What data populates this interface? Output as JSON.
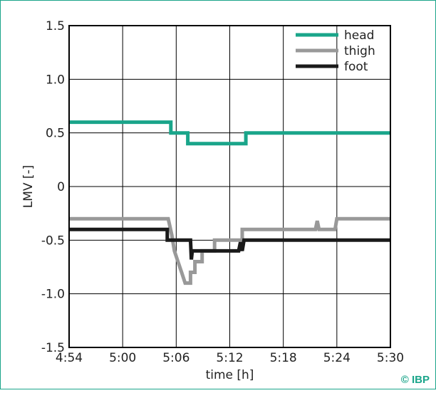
{
  "chart_data": {
    "type": "line",
    "xlabel": "time [h]",
    "ylabel": "LMV [-]",
    "xlim": [
      294,
      330
    ],
    "ylim": [
      -1.5,
      1.5
    ],
    "xticks": [
      294,
      300,
      306,
      312,
      318,
      324,
      330
    ],
    "xtick_labels": [
      "4:54",
      "5:00",
      "5:06",
      "5:12",
      "5:18",
      "5:24",
      "5:30"
    ],
    "yticks": [
      1.5,
      1.0,
      0.5,
      0,
      -0.5,
      -1.0,
      -1.5
    ],
    "ytick_labels": [
      "1.5",
      "1.0",
      "0.5",
      "0",
      "-0.5",
      "-1.0",
      "-1.5"
    ],
    "grid": true,
    "legend_position": "top-right",
    "series": [
      {
        "name": "head",
        "color": "#1aa58a",
        "points": [
          [
            294,
            0.6
          ],
          [
            305.4,
            0.6
          ],
          [
            305.4,
            0.5
          ],
          [
            307.3,
            0.5
          ],
          [
            307.3,
            0.4
          ],
          [
            313.8,
            0.4
          ],
          [
            313.8,
            0.5
          ],
          [
            330,
            0.5
          ]
        ]
      },
      {
        "name": "thigh",
        "color": "#999999",
        "points": [
          [
            294,
            -0.3
          ],
          [
            305.1,
            -0.3
          ],
          [
            305.5,
            -0.45
          ],
          [
            305.8,
            -0.6
          ],
          [
            306.2,
            -0.7
          ],
          [
            306.6,
            -0.8
          ],
          [
            307.0,
            -0.9
          ],
          [
            307.6,
            -0.9
          ],
          [
            307.6,
            -0.8
          ],
          [
            308.1,
            -0.8
          ],
          [
            308.1,
            -0.7
          ],
          [
            308.9,
            -0.7
          ],
          [
            308.9,
            -0.6
          ],
          [
            310.3,
            -0.6
          ],
          [
            310.3,
            -0.5
          ],
          [
            313.4,
            -0.5
          ],
          [
            313.4,
            -0.4
          ],
          [
            321.6,
            -0.4
          ],
          [
            321.8,
            -0.32
          ],
          [
            322,
            -0.4
          ],
          [
            323.8,
            -0.4
          ],
          [
            324,
            -0.3
          ],
          [
            330,
            -0.3
          ]
        ]
      },
      {
        "name": "foot",
        "color": "#1a1a1a",
        "points": [
          [
            294,
            -0.4
          ],
          [
            305.0,
            -0.4
          ],
          [
            305.0,
            -0.5
          ],
          [
            307.6,
            -0.5
          ],
          [
            307.7,
            -0.68
          ],
          [
            307.8,
            -0.6
          ],
          [
            313.0,
            -0.6
          ],
          [
            313.2,
            -0.52
          ],
          [
            313.4,
            -0.6
          ],
          [
            313.6,
            -0.5
          ],
          [
            330,
            -0.5
          ]
        ]
      }
    ]
  },
  "copyright": "© IBP"
}
